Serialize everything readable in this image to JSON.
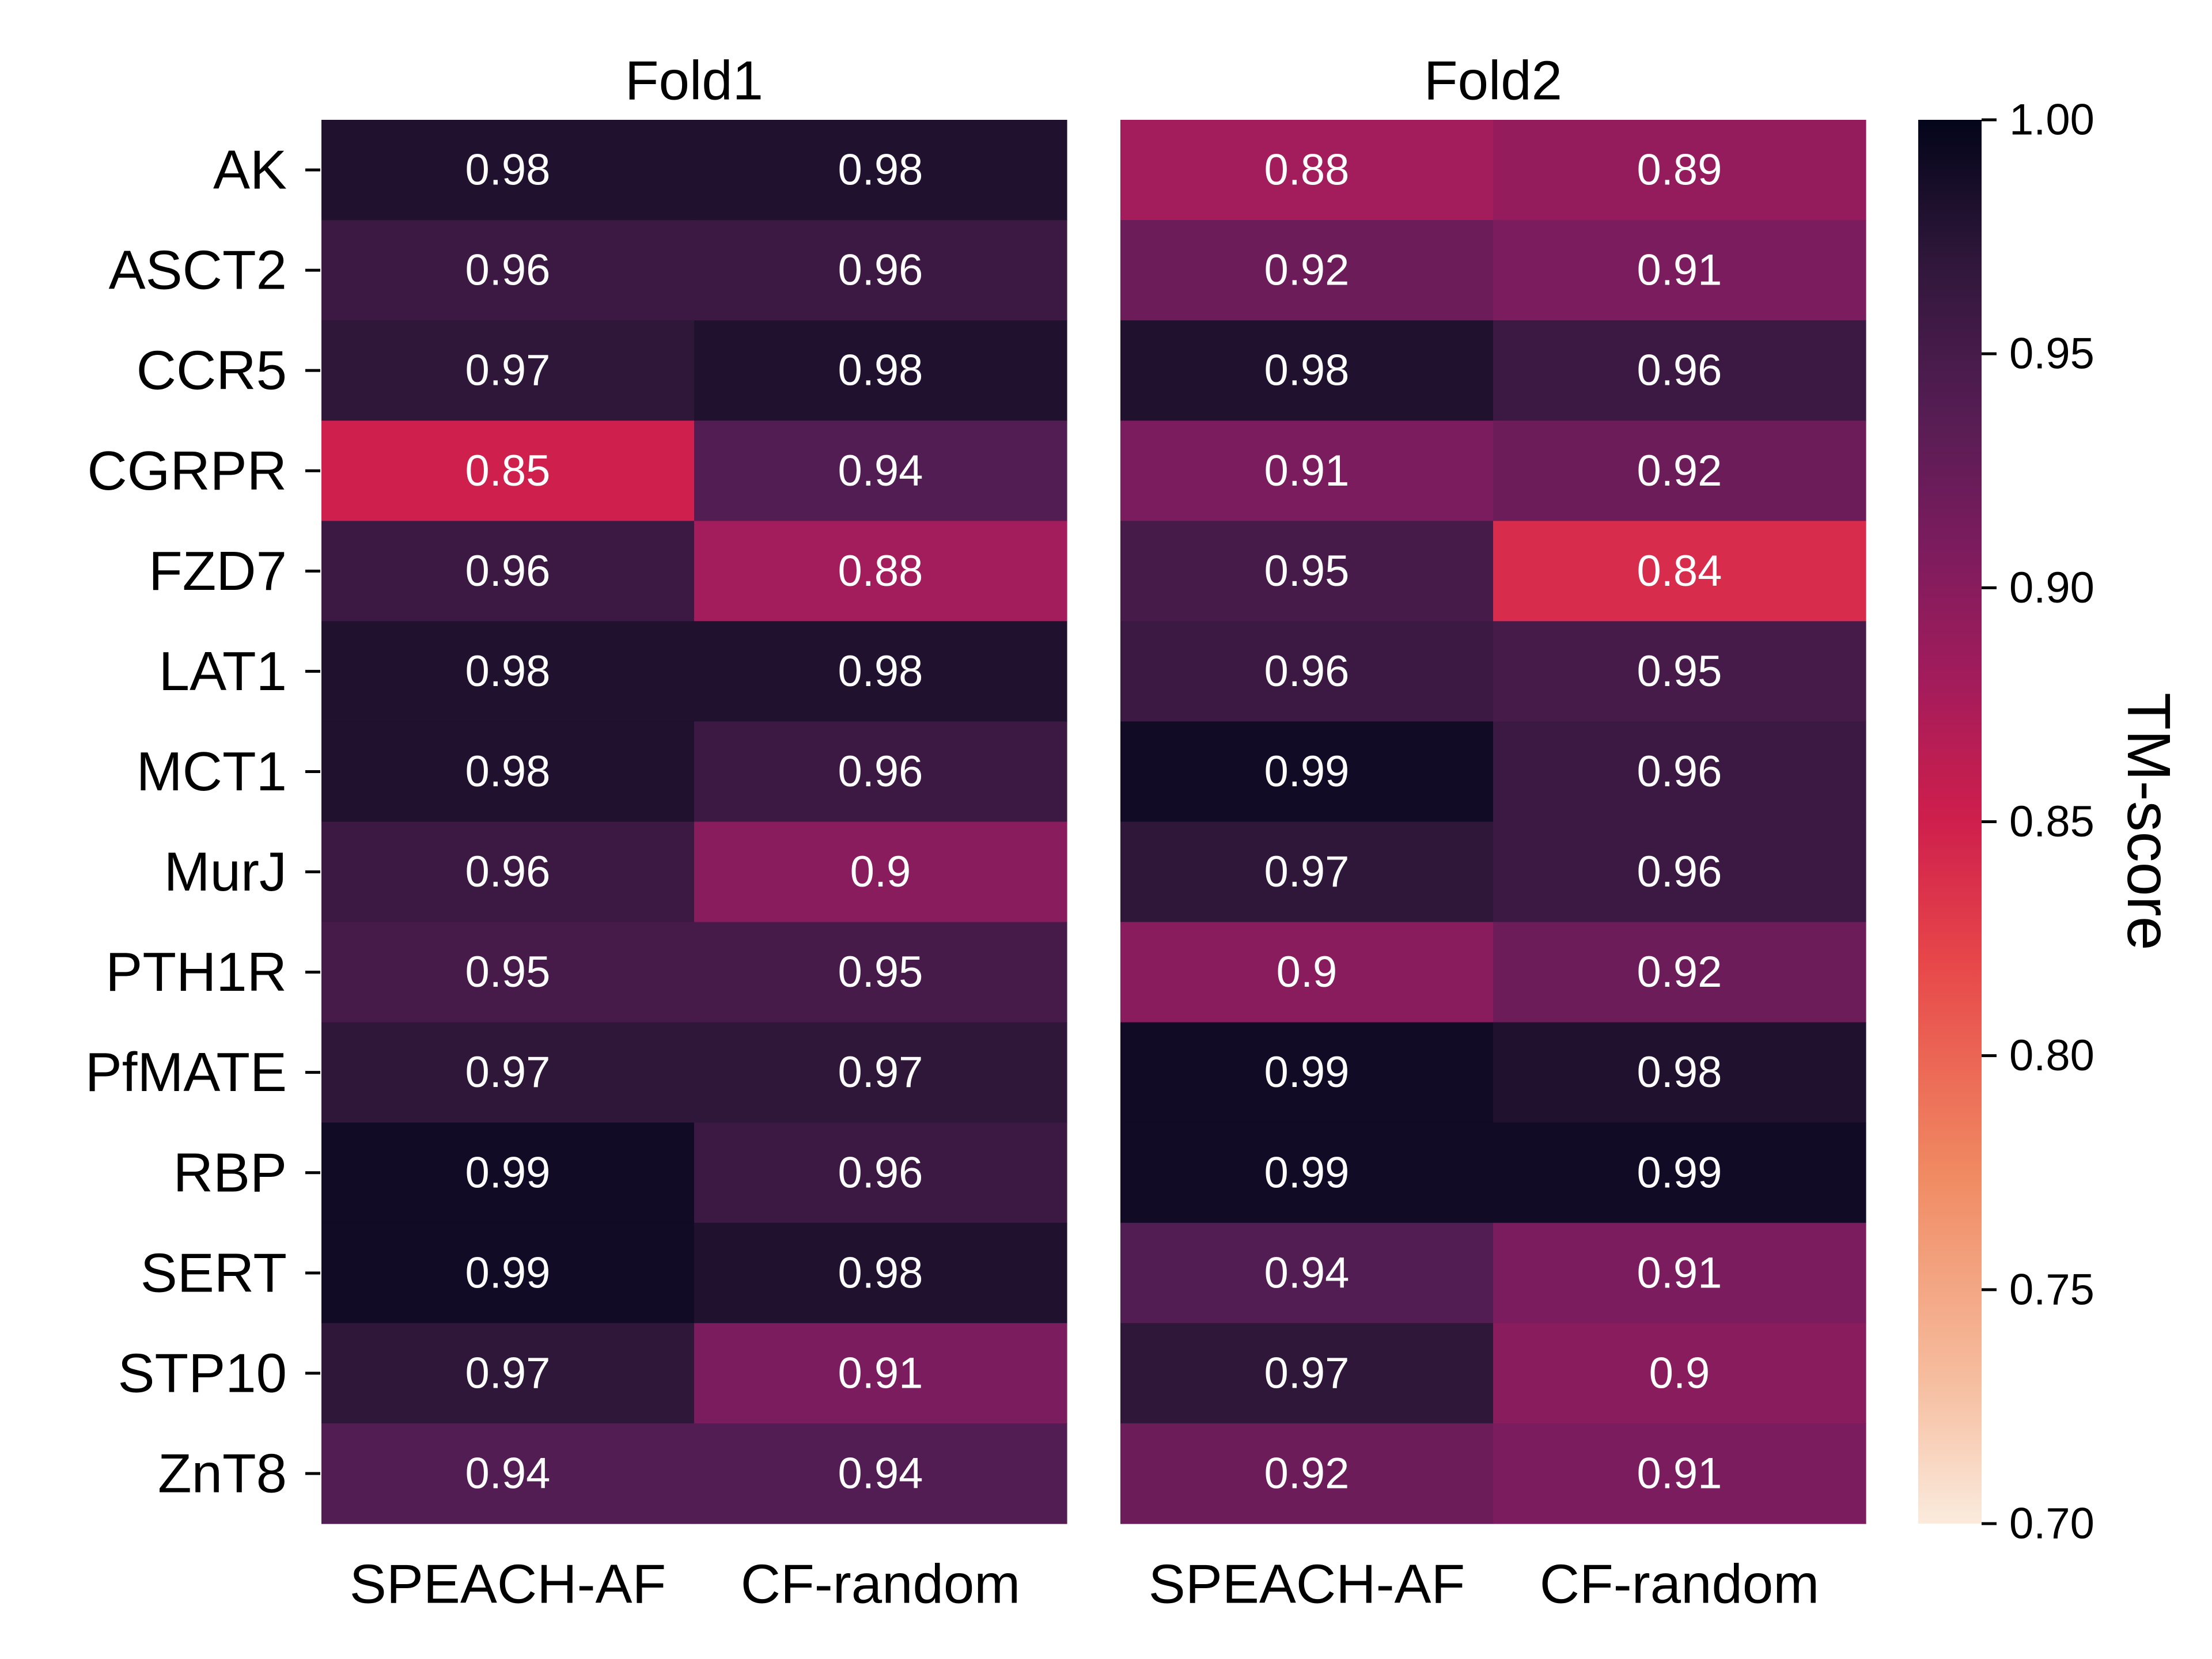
{
  "chart_data": {
    "type": "heatmap",
    "colorbar": {
      "label": "TM-score",
      "min": 0.7,
      "max": 1.0,
      "ticks": [
        "0.70",
        "0.75",
        "0.80",
        "0.85",
        "0.90",
        "0.95",
        "1.00"
      ]
    },
    "rows": [
      "AK",
      "ASCT2",
      "CCR5",
      "CGRPR",
      "FZD7",
      "LAT1",
      "MCT1",
      "MurJ",
      "PTH1R",
      "PfMATE",
      "RBP",
      "SERT",
      "STP10",
      "ZnT8"
    ],
    "panels": [
      {
        "title": "Fold1",
        "columns": [
          "SPEACH-AF",
          "CF-random"
        ],
        "values": [
          [
            0.98,
            0.98
          ],
          [
            0.96,
            0.96
          ],
          [
            0.97,
            0.98
          ],
          [
            0.85,
            0.94
          ],
          [
            0.96,
            0.88
          ],
          [
            0.98,
            0.98
          ],
          [
            0.98,
            0.96
          ],
          [
            0.96,
            0.9
          ],
          [
            0.95,
            0.95
          ],
          [
            0.97,
            0.97
          ],
          [
            0.99,
            0.96
          ],
          [
            0.99,
            0.98
          ],
          [
            0.97,
            0.91
          ],
          [
            0.94,
            0.94
          ]
        ]
      },
      {
        "title": "Fold2",
        "columns": [
          "SPEACH-AF",
          "CF-random"
        ],
        "values": [
          [
            0.88,
            0.89
          ],
          [
            0.92,
            0.91
          ],
          [
            0.98,
            0.96
          ],
          [
            0.91,
            0.92
          ],
          [
            0.95,
            0.84
          ],
          [
            0.96,
            0.95
          ],
          [
            0.99,
            0.96
          ],
          [
            0.97,
            0.96
          ],
          [
            0.9,
            0.92
          ],
          [
            0.99,
            0.98
          ],
          [
            0.99,
            0.99
          ],
          [
            0.94,
            0.91
          ],
          [
            0.97,
            0.9
          ],
          [
            0.92,
            0.91
          ]
        ]
      }
    ]
  }
}
